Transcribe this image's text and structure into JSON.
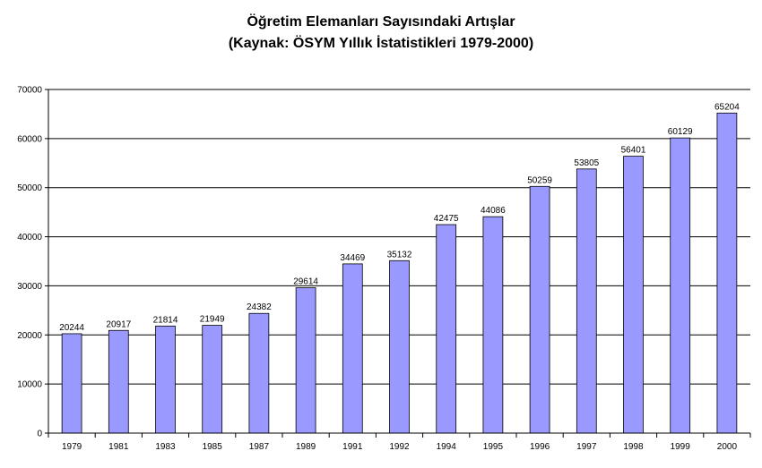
{
  "chart_data": {
    "type": "bar",
    "title": "Öğretim Elemanları Sayısındaki Artışlar",
    "subtitle": "(Kaynak: ÖSYM Yıllık İstatistikleri 1979-2000)",
    "xlabel": "",
    "ylabel": "",
    "categories": [
      "1979",
      "1981",
      "1983",
      "1985",
      "1987",
      "1989",
      "1991",
      "1992",
      "1994",
      "1995",
      "1996",
      "1997",
      "1998",
      "1999",
      "2000"
    ],
    "values": [
      20244,
      20917,
      21814,
      21949,
      24382,
      29614,
      34469,
      35132,
      42475,
      44086,
      50259,
      53805,
      56401,
      60129,
      65204
    ],
    "ylim": [
      0,
      70000
    ],
    "yticks": [
      0,
      10000,
      20000,
      30000,
      40000,
      50000,
      60000,
      70000
    ],
    "grid": true,
    "legend": "none",
    "colors": {
      "bar": "#9999ff",
      "bar_stroke": "#000000",
      "grid": "#000000"
    }
  }
}
